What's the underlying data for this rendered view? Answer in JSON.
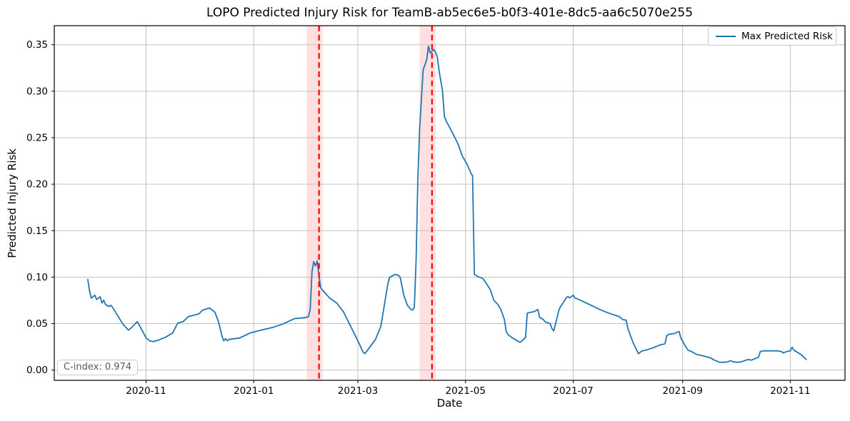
{
  "chart_data": {
    "type": "line",
    "title": "LOPO Predicted Injury Risk for TeamB-ab5ec6e5-b0f3-401e-8dc5-aa6c5070e255",
    "xlabel": "Date",
    "ylabel": "Predicted Injury Risk",
    "grid": true,
    "xlim": [
      "2020-09-10",
      "2021-12-02"
    ],
    "ylim": [
      -0.011,
      0.3705
    ],
    "x_ticks": [
      {
        "date": "2020-11-01",
        "label": "2020-11"
      },
      {
        "date": "2021-01-01",
        "label": "2021-01"
      },
      {
        "date": "2021-03-01",
        "label": "2021-03"
      },
      {
        "date": "2021-05-01",
        "label": "2021-05"
      },
      {
        "date": "2021-07-01",
        "label": "2021-07"
      },
      {
        "date": "2021-09-01",
        "label": "2021-09"
      },
      {
        "date": "2021-11-01",
        "label": "2021-11"
      }
    ],
    "y_ticks": [
      0.0,
      0.05,
      0.1,
      0.15,
      0.2,
      0.25,
      0.3,
      0.35
    ],
    "legend": {
      "position": "upper right",
      "entries": [
        {
          "label": "Max Predicted Risk",
          "color": "#1f77b4"
        }
      ]
    },
    "annotation": {
      "label": "C-index: 0.974"
    },
    "colors": {
      "line": "#1f77b4",
      "event_line": "#ff0000",
      "event_band": "rgba(255,0,0,0.12)",
      "grid": "#c2c2c2",
      "spine": "#000000",
      "tick_text": "#000000"
    },
    "injury_events": [
      {
        "date": "2021-02-07",
        "band_start": "2021-01-31",
        "band_end": "2021-02-09"
      },
      {
        "date": "2021-04-12",
        "band_start": "2021-04-05",
        "band_end": "2021-04-14"
      }
    ],
    "series": [
      {
        "name": "Max Predicted Risk",
        "color": "#1f77b4",
        "points": [
          [
            "2020-09-29",
            0.0975
          ],
          [
            "2020-09-30",
            0.085
          ],
          [
            "2020-10-01",
            0.0775
          ],
          [
            "2020-10-03",
            0.0806
          ],
          [
            "2020-10-04",
            0.076
          ],
          [
            "2020-10-06",
            0.079
          ],
          [
            "2020-10-07",
            0.0722
          ],
          [
            "2020-10-08",
            0.0752
          ],
          [
            "2020-10-09",
            0.0706
          ],
          [
            "2020-10-11",
            0.0683
          ],
          [
            "2020-10-12",
            0.0698
          ],
          [
            "2020-10-13",
            0.0675
          ],
          [
            "2020-10-19",
            0.0491
          ],
          [
            "2020-10-22",
            0.043
          ],
          [
            "2020-10-24",
            0.046
          ],
          [
            "2020-10-27",
            0.0522
          ],
          [
            "2020-10-29",
            0.0453
          ],
          [
            "2020-10-31",
            0.0384
          ],
          [
            "2020-11-01",
            0.0345
          ],
          [
            "2020-11-03",
            0.0315
          ],
          [
            "2020-11-05",
            0.0307
          ],
          [
            "2020-11-08",
            0.0322
          ],
          [
            "2020-11-10",
            0.0338
          ],
          [
            "2020-11-12",
            0.0353
          ],
          [
            "2020-11-16",
            0.0399
          ],
          [
            "2020-11-19",
            0.0507
          ],
          [
            "2020-11-22",
            0.0522
          ],
          [
            "2020-11-25",
            0.0576
          ],
          [
            "2020-11-28",
            0.0591
          ],
          [
            "2020-12-01",
            0.0606
          ],
          [
            "2020-12-03",
            0.0645
          ],
          [
            "2020-12-07",
            0.0668
          ],
          [
            "2020-12-10",
            0.0622
          ],
          [
            "2020-12-12",
            0.0522
          ],
          [
            "2020-12-14",
            0.0368
          ],
          [
            "2020-12-15",
            0.0315
          ],
          [
            "2020-12-16",
            0.0338
          ],
          [
            "2020-12-17",
            0.0315
          ],
          [
            "2020-12-18",
            0.033
          ],
          [
            "2020-12-24",
            0.0345
          ],
          [
            "2020-12-30",
            0.04
          ],
          [
            "2021-01-05",
            0.043
          ],
          [
            "2021-01-12",
            0.046
          ],
          [
            "2021-01-18",
            0.0499
          ],
          [
            "2021-01-24",
            0.0553
          ],
          [
            "2021-01-28",
            0.056
          ],
          [
            "2021-01-31",
            0.0568
          ],
          [
            "2021-02-01",
            0.0576
          ],
          [
            "2021-02-02",
            0.0652
          ],
          [
            "2021-02-03",
            0.1059
          ],
          [
            "2021-02-04",
            0.1167
          ],
          [
            "2021-02-05",
            0.1121
          ],
          [
            "2021-02-06",
            0.1174
          ],
          [
            "2021-02-07",
            0.1006
          ],
          [
            "2021-02-08",
            0.0883
          ],
          [
            "2021-02-09",
            0.086
          ],
          [
            "2021-02-13",
            0.0775
          ],
          [
            "2021-02-17",
            0.0722
          ],
          [
            "2021-02-21",
            0.0622
          ],
          [
            "2021-02-25",
            0.0468
          ],
          [
            "2021-03-01",
            0.0315
          ],
          [
            "2021-03-04",
            0.0192
          ],
          [
            "2021-03-05",
            0.0177
          ],
          [
            "2021-03-08",
            0.0253
          ],
          [
            "2021-03-11",
            0.033
          ],
          [
            "2021-03-14",
            0.0468
          ],
          [
            "2021-03-16",
            0.0699
          ],
          [
            "2021-03-18",
            0.0929
          ],
          [
            "2021-03-19",
            0.0998
          ],
          [
            "2021-03-22",
            0.1029
          ],
          [
            "2021-03-24",
            0.1021
          ],
          [
            "2021-03-25",
            0.0998
          ],
          [
            "2021-03-27",
            0.0806
          ],
          [
            "2021-03-29",
            0.0699
          ],
          [
            "2021-03-31",
            0.0653
          ],
          [
            "2021-04-01",
            0.0645
          ],
          [
            "2021-04-02",
            0.0676
          ],
          [
            "2021-04-03",
            0.12
          ],
          [
            "2021-04-04",
            0.206
          ],
          [
            "2021-04-05",
            0.26
          ],
          [
            "2021-04-07",
            0.323
          ],
          [
            "2021-04-09",
            0.334
          ],
          [
            "2021-04-10",
            0.3485
          ],
          [
            "2021-04-11",
            0.341
          ],
          [
            "2021-04-13",
            0.345
          ],
          [
            "2021-04-14",
            0.342
          ],
          [
            "2021-04-15",
            0.337
          ],
          [
            "2021-04-16",
            0.322
          ],
          [
            "2021-04-18",
            0.3
          ],
          [
            "2021-04-19",
            0.273
          ],
          [
            "2021-04-20",
            0.268
          ],
          [
            "2021-04-24",
            0.254
          ],
          [
            "2021-04-27",
            0.242
          ],
          [
            "2021-04-29",
            0.231
          ],
          [
            "2021-05-02",
            0.221
          ],
          [
            "2021-05-04",
            0.212
          ],
          [
            "2021-05-05",
            0.209
          ],
          [
            "2021-05-06",
            0.103
          ],
          [
            "2021-05-08",
            0.1006
          ],
          [
            "2021-05-11",
            0.0983
          ],
          [
            "2021-05-15",
            0.0868
          ],
          [
            "2021-05-17",
            0.0752
          ],
          [
            "2021-05-19",
            0.0714
          ],
          [
            "2021-05-21",
            0.0652
          ],
          [
            "2021-05-23",
            0.0545
          ],
          [
            "2021-05-24",
            0.0422
          ],
          [
            "2021-05-25",
            0.0384
          ],
          [
            "2021-05-27",
            0.0353
          ],
          [
            "2021-05-29",
            0.033
          ],
          [
            "2021-05-31",
            0.0307
          ],
          [
            "2021-06-01",
            0.03
          ],
          [
            "2021-06-02",
            0.0315
          ],
          [
            "2021-06-04",
            0.0353
          ],
          [
            "2021-06-05",
            0.0614
          ],
          [
            "2021-06-07",
            0.0622
          ],
          [
            "2021-06-09",
            0.063
          ],
          [
            "2021-06-11",
            0.0652
          ],
          [
            "2021-06-12",
            0.0568
          ],
          [
            "2021-06-14",
            0.0545
          ],
          [
            "2021-06-15",
            0.0522
          ],
          [
            "2021-06-18",
            0.0499
          ],
          [
            "2021-06-19",
            0.0445
          ],
          [
            "2021-06-20",
            0.0422
          ],
          [
            "2021-06-21",
            0.0499
          ],
          [
            "2021-06-23",
            0.0652
          ],
          [
            "2021-06-24",
            0.069
          ],
          [
            "2021-06-25",
            0.0714
          ],
          [
            "2021-06-27",
            0.0776
          ],
          [
            "2021-06-28",
            0.0791
          ],
          [
            "2021-06-29",
            0.0776
          ],
          [
            "2021-07-01",
            0.0806
          ],
          [
            "2021-07-02",
            0.0776
          ],
          [
            "2021-07-05",
            0.0752
          ],
          [
            "2021-07-11",
            0.0698
          ],
          [
            "2021-07-16",
            0.0652
          ],
          [
            "2021-07-21",
            0.0614
          ],
          [
            "2021-07-27",
            0.0576
          ],
          [
            "2021-07-29",
            0.0545
          ],
          [
            "2021-07-31",
            0.0537
          ],
          [
            "2021-08-01",
            0.0445
          ],
          [
            "2021-08-04",
            0.0292
          ],
          [
            "2021-08-07",
            0.0176
          ],
          [
            "2021-08-09",
            0.0207
          ],
          [
            "2021-08-11",
            0.0215
          ],
          [
            "2021-08-15",
            0.0238
          ],
          [
            "2021-08-19",
            0.0269
          ],
          [
            "2021-08-22",
            0.0284
          ],
          [
            "2021-08-23",
            0.0368
          ],
          [
            "2021-08-24",
            0.0384
          ],
          [
            "2021-08-27",
            0.0392
          ],
          [
            "2021-08-30",
            0.0415
          ],
          [
            "2021-08-31",
            0.0345
          ],
          [
            "2021-09-02",
            0.0276
          ],
          [
            "2021-09-04",
            0.0215
          ],
          [
            "2021-09-06",
            0.02
          ],
          [
            "2021-09-09",
            0.0169
          ],
          [
            "2021-09-11",
            0.0161
          ],
          [
            "2021-09-14",
            0.0146
          ],
          [
            "2021-09-17",
            0.013
          ],
          [
            "2021-09-19",
            0.0107
          ],
          [
            "2021-09-22",
            0.0084
          ],
          [
            "2021-09-25",
            0.0084
          ],
          [
            "2021-09-27",
            0.0092
          ],
          [
            "2021-09-28",
            0.01
          ],
          [
            "2021-09-30",
            0.0088
          ],
          [
            "2021-10-02",
            0.0084
          ],
          [
            "2021-10-04",
            0.0088
          ],
          [
            "2021-10-06",
            0.01
          ],
          [
            "2021-10-08",
            0.0115
          ],
          [
            "2021-10-10",
            0.0107
          ],
          [
            "2021-10-12",
            0.0123
          ],
          [
            "2021-10-14",
            0.0138
          ],
          [
            "2021-10-15",
            0.02
          ],
          [
            "2021-10-17",
            0.0207
          ],
          [
            "2021-10-21",
            0.0207
          ],
          [
            "2021-10-25",
            0.0207
          ],
          [
            "2021-10-27",
            0.02
          ],
          [
            "2021-10-28",
            0.0184
          ],
          [
            "2021-10-30",
            0.02
          ],
          [
            "2021-11-01",
            0.0207
          ],
          [
            "2021-11-02",
            0.0246
          ],
          [
            "2021-11-03",
            0.0215
          ],
          [
            "2021-11-05",
            0.0192
          ],
          [
            "2021-11-07",
            0.0169
          ],
          [
            "2021-11-10",
            0.0115
          ]
        ]
      }
    ]
  }
}
